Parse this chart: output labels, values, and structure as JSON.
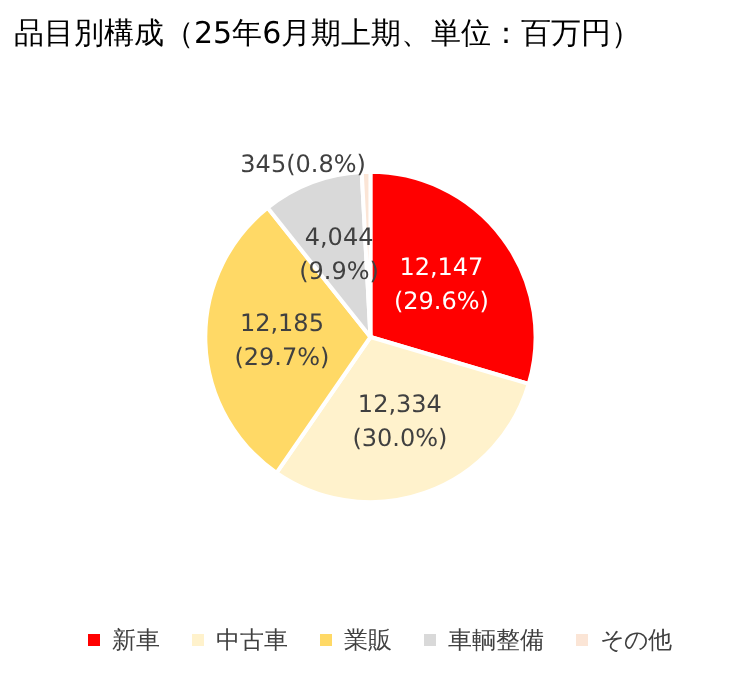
{
  "chart_data": {
    "type": "pie",
    "title": "品目別構成（25年6月期上期、単位：百万円）",
    "categories": [
      "新車",
      "中古車",
      "業販",
      "車輌整備",
      "その他"
    ],
    "values": [
      12147,
      12334,
      12185,
      4044,
      345
    ],
    "colors": [
      "#ff0000",
      "#fff2cc",
      "#ffd966",
      "#d9d9d9",
      "#fbe5d6"
    ],
    "value_labels": [
      "12,147\n(29.6%)",
      "12,334\n(30.0%)",
      "12,185\n(29.7%)",
      "4,044\n(9.9%)",
      "345(0.8%)"
    ],
    "legend": "bottom"
  }
}
